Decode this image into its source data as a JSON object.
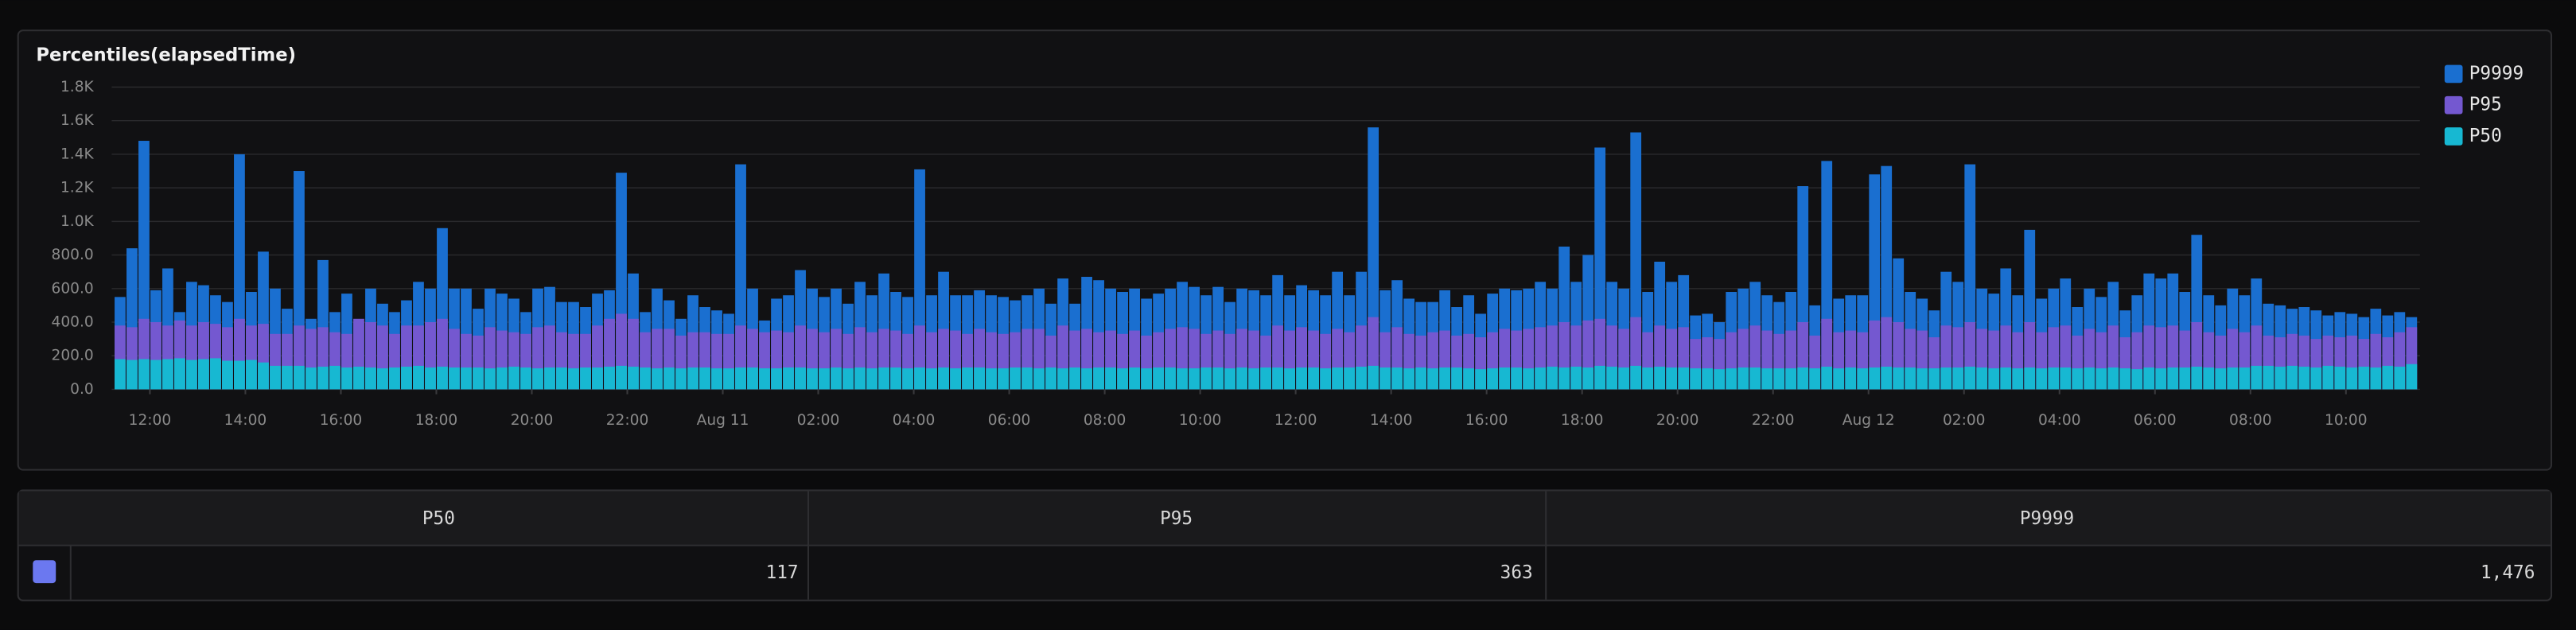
{
  "chart_data": {
    "type": "bar",
    "title": "Percentiles(elapsedTime)",
    "grid": true,
    "legend": "top-right",
    "xlim": [
      11.2,
      59.55
    ],
    "ylim": [
      0,
      1800
    ],
    "yticks": [
      {
        "value": 0,
        "label": "0.0"
      },
      {
        "value": 200,
        "label": "200.0"
      },
      {
        "value": 400,
        "label": "400.0"
      },
      {
        "value": 600,
        "label": "600.0"
      },
      {
        "value": 800,
        "label": "800.0"
      },
      {
        "value": 1000,
        "label": "1.0K"
      },
      {
        "value": 1200,
        "label": "1.2K"
      },
      {
        "value": 1400,
        "label": "1.4K"
      },
      {
        "value": 1600,
        "label": "1.6K"
      },
      {
        "value": 1800,
        "label": "1.8K"
      }
    ],
    "xticks": [
      {
        "value": 12,
        "label": "12:00"
      },
      {
        "value": 14,
        "label": "14:00"
      },
      {
        "value": 16,
        "label": "16:00"
      },
      {
        "value": 18,
        "label": "18:00"
      },
      {
        "value": 20,
        "label": "20:00"
      },
      {
        "value": 22,
        "label": "22:00"
      },
      {
        "value": 24,
        "label": "Aug 11"
      },
      {
        "value": 26,
        "label": "02:00"
      },
      {
        "value": 28,
        "label": "04:00"
      },
      {
        "value": 30,
        "label": "06:00"
      },
      {
        "value": 32,
        "label": "08:00"
      },
      {
        "value": 34,
        "label": "10:00"
      },
      {
        "value": 36,
        "label": "12:00"
      },
      {
        "value": 38,
        "label": "14:00"
      },
      {
        "value": 40,
        "label": "16:00"
      },
      {
        "value": 42,
        "label": "18:00"
      },
      {
        "value": 44,
        "label": "20:00"
      },
      {
        "value": 46,
        "label": "22:00"
      },
      {
        "value": 48,
        "label": "Aug 12"
      },
      {
        "value": 50,
        "label": "02:00"
      },
      {
        "value": 52,
        "label": "04:00"
      },
      {
        "value": 54,
        "label": "06:00"
      },
      {
        "value": 56,
        "label": "08:00"
      },
      {
        "value": 58,
        "label": "10:00"
      }
    ],
    "x": [
      11.375,
      11.625,
      11.875,
      12.125,
      12.375,
      12.625,
      12.875,
      13.125,
      13.375,
      13.625,
      13.875,
      14.125,
      14.375,
      14.625,
      14.875,
      15.125,
      15.375,
      15.625,
      15.875,
      16.125,
      16.375,
      16.625,
      16.875,
      17.125,
      17.375,
      17.625,
      17.875,
      18.125,
      18.375,
      18.625,
      18.875,
      19.125,
      19.375,
      19.625,
      19.875,
      20.125,
      20.375,
      20.625,
      20.875,
      21.125,
      21.375,
      21.625,
      21.875,
      22.125,
      22.375,
      22.625,
      22.875,
      23.125,
      23.375,
      23.625,
      23.875,
      24.125,
      24.375,
      24.625,
      24.875,
      25.125,
      25.375,
      25.625,
      25.875,
      26.125,
      26.375,
      26.625,
      26.875,
      27.125,
      27.375,
      27.625,
      27.875,
      28.125,
      28.375,
      28.625,
      28.875,
      29.125,
      29.375,
      29.625,
      29.875,
      30.125,
      30.375,
      30.625,
      30.875,
      31.125,
      31.375,
      31.625,
      31.875,
      32.125,
      32.375,
      32.625,
      32.875,
      33.125,
      33.375,
      33.625,
      33.875,
      34.125,
      34.375,
      34.625,
      34.875,
      35.125,
      35.375,
      35.625,
      35.875,
      36.125,
      36.375,
      36.625,
      36.875,
      37.125,
      37.375,
      37.625,
      37.875,
      38.125,
      38.375,
      38.625,
      38.875,
      39.125,
      39.375,
      39.625,
      39.875,
      40.125,
      40.375,
      40.625,
      40.875,
      41.125,
      41.375,
      41.625,
      41.875,
      42.125,
      42.375,
      42.625,
      42.875,
      43.125,
      43.375,
      43.625,
      43.875,
      44.125,
      44.375,
      44.625,
      44.875,
      45.125,
      45.375,
      45.625,
      45.875,
      46.125,
      46.375,
      46.625,
      46.875,
      47.125,
      47.375,
      47.625,
      47.875,
      48.125,
      48.375,
      48.625,
      48.875,
      49.125,
      49.375,
      49.625,
      49.875,
      50.125,
      50.375,
      50.625,
      50.875,
      51.125,
      51.375,
      51.625,
      51.875,
      52.125,
      52.375,
      52.625,
      52.875,
      53.125,
      53.375,
      53.625,
      53.875,
      54.125,
      54.375,
      54.625,
      54.875,
      55.125,
      55.375,
      55.625,
      55.875,
      56.125,
      56.375,
      56.625,
      56.875,
      57.125,
      57.375,
      57.625,
      57.875,
      58.125,
      58.375,
      58.625,
      58.875,
      59.125,
      59.375
    ],
    "series": [
      {
        "name": "P9999",
        "color": "#1a6fd0",
        "values": [
          550,
          840,
          1480,
          590,
          720,
          460,
          640,
          620,
          560,
          520,
          1400,
          580,
          820,
          600,
          480,
          1300,
          420,
          770,
          460,
          570,
          400,
          600,
          510,
          460,
          530,
          640,
          600,
          960,
          600,
          600,
          480,
          600,
          570,
          540,
          460,
          600,
          610,
          520,
          520,
          490,
          570,
          590,
          1290,
          690,
          460,
          600,
          530,
          420,
          560,
          490,
          470,
          450,
          1340,
          600,
          410,
          540,
          560,
          710,
          600,
          550,
          600,
          510,
          640,
          560,
          690,
          580,
          550,
          1310,
          560,
          700,
          560,
          560,
          590,
          560,
          550,
          530,
          560,
          600,
          510,
          660,
          510,
          670,
          650,
          600,
          580,
          600,
          540,
          570,
          600,
          640,
          610,
          560,
          610,
          520,
          600,
          590,
          560,
          680,
          560,
          620,
          590,
          560,
          700,
          560,
          700,
          1560,
          590,
          650,
          540,
          520,
          520,
          590,
          490,
          560,
          450,
          570,
          600,
          590,
          600,
          640,
          600,
          850,
          640,
          800,
          1440,
          640,
          600,
          1530,
          580,
          760,
          640,
          680,
          440,
          450,
          400,
          580,
          600,
          640,
          560,
          520,
          580,
          1210,
          500,
          1360,
          540,
          560,
          560,
          1280,
          1330,
          780,
          580,
          540,
          470,
          700,
          640,
          1340,
          600,
          570,
          720,
          560,
          950,
          540,
          600,
          660,
          490,
          600,
          550,
          640,
          470,
          560,
          690,
          660,
          690,
          580,
          920,
          560,
          500,
          600,
          560,
          660,
          510,
          500,
          480,
          490,
          470,
          440,
          460,
          450,
          430,
          480,
          440,
          460,
          430
        ]
      },
      {
        "name": "P95",
        "color": "#7458d0",
        "values": [
          380,
          370,
          420,
          400,
          380,
          410,
          380,
          400,
          390,
          370,
          420,
          380,
          390,
          330,
          330,
          380,
          360,
          370,
          340,
          330,
          420,
          400,
          380,
          330,
          380,
          380,
          400,
          420,
          360,
          330,
          320,
          370,
          350,
          340,
          330,
          370,
          380,
          340,
          330,
          330,
          380,
          420,
          450,
          420,
          340,
          360,
          360,
          320,
          340,
          340,
          330,
          330,
          380,
          360,
          340,
          350,
          340,
          380,
          360,
          340,
          360,
          330,
          370,
          340,
          360,
          350,
          330,
          380,
          340,
          360,
          350,
          330,
          360,
          340,
          330,
          340,
          360,
          360,
          320,
          380,
          350,
          360,
          340,
          350,
          330,
          350,
          320,
          340,
          360,
          370,
          360,
          330,
          350,
          330,
          360,
          350,
          320,
          380,
          350,
          370,
          350,
          330,
          360,
          340,
          380,
          430,
          340,
          370,
          330,
          320,
          340,
          350,
          320,
          330,
          310,
          340,
          360,
          350,
          360,
          370,
          380,
          400,
          380,
          410,
          420,
          380,
          360,
          430,
          340,
          380,
          360,
          370,
          300,
          310,
          300,
          340,
          360,
          380,
          350,
          330,
          350,
          400,
          320,
          420,
          340,
          350,
          340,
          410,
          430,
          400,
          360,
          350,
          310,
          380,
          370,
          400,
          360,
          350,
          380,
          340,
          400,
          340,
          370,
          380,
          320,
          360,
          340,
          380,
          310,
          340,
          380,
          370,
          380,
          350,
          400,
          340,
          320,
          360,
          340,
          380,
          320,
          310,
          330,
          320,
          300,
          320,
          310,
          320,
          300,
          330,
          310,
          340,
          370
        ]
      },
      {
        "name": "P50",
        "color": "#17b8d2",
        "values": [
          180,
          175,
          180,
          175,
          180,
          185,
          175,
          180,
          185,
          170,
          170,
          175,
          160,
          140,
          140,
          140,
          130,
          135,
          140,
          130,
          135,
          130,
          125,
          130,
          135,
          140,
          130,
          135,
          130,
          130,
          130,
          125,
          130,
          135,
          130,
          125,
          130,
          130,
          125,
          130,
          130,
          135,
          140,
          135,
          130,
          125,
          130,
          125,
          130,
          130,
          125,
          125,
          130,
          130,
          125,
          125,
          130,
          130,
          125,
          125,
          130,
          125,
          130,
          125,
          130,
          130,
          125,
          130,
          125,
          130,
          125,
          130,
          130,
          125,
          125,
          130,
          130,
          125,
          130,
          125,
          130,
          125,
          130,
          130,
          125,
          130,
          125,
          130,
          130,
          125,
          125,
          130,
          130,
          125,
          130,
          125,
          130,
          130,
          125,
          130,
          130,
          125,
          130,
          130,
          135,
          140,
          130,
          130,
          125,
          130,
          125,
          130,
          130,
          125,
          120,
          125,
          130,
          130,
          125,
          130,
          135,
          130,
          135,
          130,
          140,
          135,
          130,
          140,
          130,
          135,
          130,
          130,
          125,
          125,
          120,
          125,
          130,
          130,
          125,
          125,
          125,
          130,
          125,
          135,
          125,
          130,
          125,
          130,
          135,
          130,
          130,
          125,
          125,
          130,
          130,
          135,
          130,
          125,
          130,
          125,
          130,
          125,
          130,
          130,
          125,
          130,
          125,
          130,
          125,
          120,
          130,
          125,
          130,
          130,
          135,
          130,
          125,
          130,
          130,
          140,
          140,
          135,
          140,
          135,
          130,
          140,
          135,
          130,
          135,
          130,
          140,
          135,
          150
        ]
      }
    ]
  },
  "table": {
    "columns": [
      "P50",
      "P95",
      "P9999"
    ],
    "rows": [
      [
        "117",
        "363",
        "1,476"
      ]
    ]
  }
}
